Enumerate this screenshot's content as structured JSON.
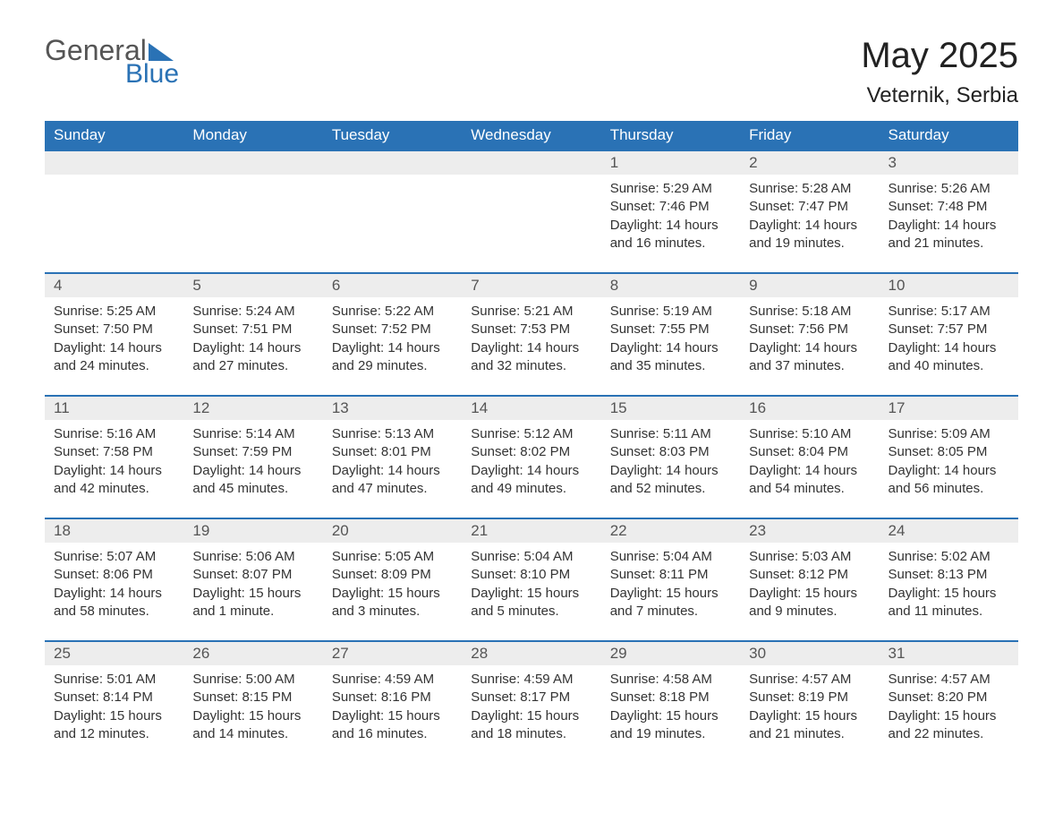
{
  "logo": {
    "text_top": "General",
    "text_bottom": "Blue"
  },
  "header": {
    "month_title": "May 2025",
    "location": "Veternik, Serbia"
  },
  "colors": {
    "brand_blue": "#2a72b5",
    "header_text": "#ffffff",
    "daynum_bg": "#ededed",
    "body_text": "#333333",
    "page_bg": "#ffffff"
  },
  "typography": {
    "month_title_fontsize": 40,
    "location_fontsize": 24,
    "weekday_fontsize": 17,
    "daynum_fontsize": 17,
    "cell_fontsize": 15,
    "font_family": "Arial"
  },
  "layout": {
    "columns": 7,
    "column_width_pct": 14.28,
    "first_day_column_index": 4
  },
  "labels": {
    "sunrise_prefix": "Sunrise: ",
    "sunset_prefix": "Sunset: ",
    "daylight_prefix": "Daylight: "
  },
  "weekdays": [
    "Sunday",
    "Monday",
    "Tuesday",
    "Wednesday",
    "Thursday",
    "Friday",
    "Saturday"
  ],
  "days": [
    {
      "n": 1,
      "sunrise": "5:29 AM",
      "sunset": "7:46 PM",
      "daylight": "14 hours and 16 minutes."
    },
    {
      "n": 2,
      "sunrise": "5:28 AM",
      "sunset": "7:47 PM",
      "daylight": "14 hours and 19 minutes."
    },
    {
      "n": 3,
      "sunrise": "5:26 AM",
      "sunset": "7:48 PM",
      "daylight": "14 hours and 21 minutes."
    },
    {
      "n": 4,
      "sunrise": "5:25 AM",
      "sunset": "7:50 PM",
      "daylight": "14 hours and 24 minutes."
    },
    {
      "n": 5,
      "sunrise": "5:24 AM",
      "sunset": "7:51 PM",
      "daylight": "14 hours and 27 minutes."
    },
    {
      "n": 6,
      "sunrise": "5:22 AM",
      "sunset": "7:52 PM",
      "daylight": "14 hours and 29 minutes."
    },
    {
      "n": 7,
      "sunrise": "5:21 AM",
      "sunset": "7:53 PM",
      "daylight": "14 hours and 32 minutes."
    },
    {
      "n": 8,
      "sunrise": "5:19 AM",
      "sunset": "7:55 PM",
      "daylight": "14 hours and 35 minutes."
    },
    {
      "n": 9,
      "sunrise": "5:18 AM",
      "sunset": "7:56 PM",
      "daylight": "14 hours and 37 minutes."
    },
    {
      "n": 10,
      "sunrise": "5:17 AM",
      "sunset": "7:57 PM",
      "daylight": "14 hours and 40 minutes."
    },
    {
      "n": 11,
      "sunrise": "5:16 AM",
      "sunset": "7:58 PM",
      "daylight": "14 hours and 42 minutes."
    },
    {
      "n": 12,
      "sunrise": "5:14 AM",
      "sunset": "7:59 PM",
      "daylight": "14 hours and 45 minutes."
    },
    {
      "n": 13,
      "sunrise": "5:13 AM",
      "sunset": "8:01 PM",
      "daylight": "14 hours and 47 minutes."
    },
    {
      "n": 14,
      "sunrise": "5:12 AM",
      "sunset": "8:02 PM",
      "daylight": "14 hours and 49 minutes."
    },
    {
      "n": 15,
      "sunrise": "5:11 AM",
      "sunset": "8:03 PM",
      "daylight": "14 hours and 52 minutes."
    },
    {
      "n": 16,
      "sunrise": "5:10 AM",
      "sunset": "8:04 PM",
      "daylight": "14 hours and 54 minutes."
    },
    {
      "n": 17,
      "sunrise": "5:09 AM",
      "sunset": "8:05 PM",
      "daylight": "14 hours and 56 minutes."
    },
    {
      "n": 18,
      "sunrise": "5:07 AM",
      "sunset": "8:06 PM",
      "daylight": "14 hours and 58 minutes."
    },
    {
      "n": 19,
      "sunrise": "5:06 AM",
      "sunset": "8:07 PM",
      "daylight": "15 hours and 1 minute."
    },
    {
      "n": 20,
      "sunrise": "5:05 AM",
      "sunset": "8:09 PM",
      "daylight": "15 hours and 3 minutes."
    },
    {
      "n": 21,
      "sunrise": "5:04 AM",
      "sunset": "8:10 PM",
      "daylight": "15 hours and 5 minutes."
    },
    {
      "n": 22,
      "sunrise": "5:04 AM",
      "sunset": "8:11 PM",
      "daylight": "15 hours and 7 minutes."
    },
    {
      "n": 23,
      "sunrise": "5:03 AM",
      "sunset": "8:12 PM",
      "daylight": "15 hours and 9 minutes."
    },
    {
      "n": 24,
      "sunrise": "5:02 AM",
      "sunset": "8:13 PM",
      "daylight": "15 hours and 11 minutes."
    },
    {
      "n": 25,
      "sunrise": "5:01 AM",
      "sunset": "8:14 PM",
      "daylight": "15 hours and 12 minutes."
    },
    {
      "n": 26,
      "sunrise": "5:00 AM",
      "sunset": "8:15 PM",
      "daylight": "15 hours and 14 minutes."
    },
    {
      "n": 27,
      "sunrise": "4:59 AM",
      "sunset": "8:16 PM",
      "daylight": "15 hours and 16 minutes."
    },
    {
      "n": 28,
      "sunrise": "4:59 AM",
      "sunset": "8:17 PM",
      "daylight": "15 hours and 18 minutes."
    },
    {
      "n": 29,
      "sunrise": "4:58 AM",
      "sunset": "8:18 PM",
      "daylight": "15 hours and 19 minutes."
    },
    {
      "n": 30,
      "sunrise": "4:57 AM",
      "sunset": "8:19 PM",
      "daylight": "15 hours and 21 minutes."
    },
    {
      "n": 31,
      "sunrise": "4:57 AM",
      "sunset": "8:20 PM",
      "daylight": "15 hours and 22 minutes."
    }
  ]
}
